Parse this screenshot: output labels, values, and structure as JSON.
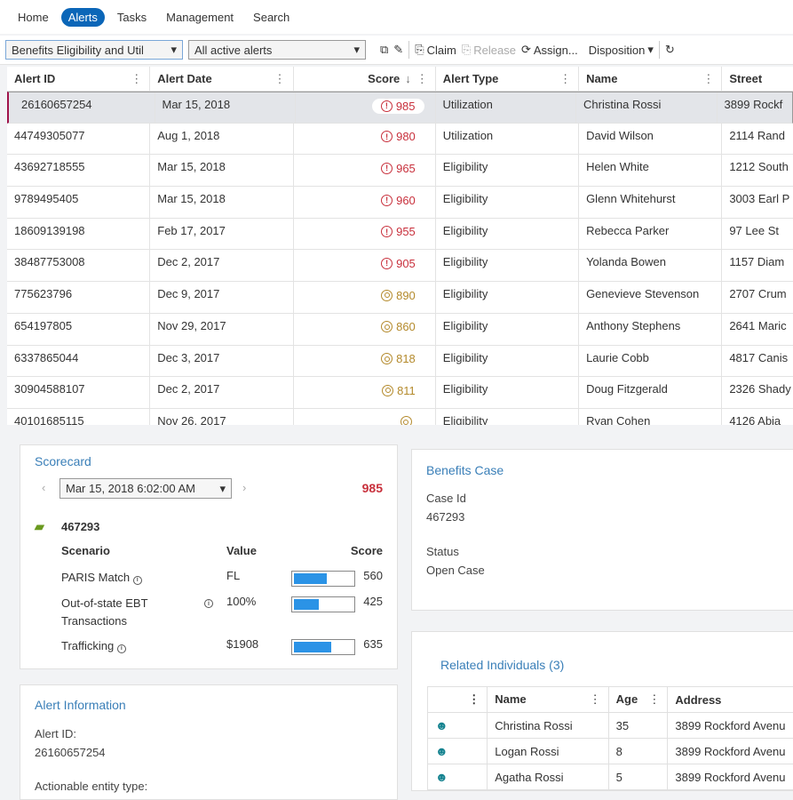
{
  "nav": {
    "items": [
      "Home",
      "Alerts",
      "Tasks",
      "Management",
      "Search"
    ],
    "active": 1
  },
  "toolbar": {
    "queue": "Benefits Eligibility and Util",
    "filter": "All active alerts",
    "claim": "Claim",
    "release": "Release",
    "assign": "Assign...",
    "disposition": "Disposition"
  },
  "grid": {
    "headers": [
      "Alert ID",
      "Alert Date",
      "Score",
      "Alert Type",
      "Name",
      "Street"
    ],
    "rows": [
      {
        "id": "26160657254",
        "date": "Mar 15, 2018",
        "score": "985",
        "level": "high",
        "type": "Utilization",
        "name": "Christina Rossi",
        "street": "3899 Rockf"
      },
      {
        "id": "44749305077",
        "date": "Aug 1, 2018",
        "score": "980",
        "level": "high",
        "type": "Utilization",
        "name": "David Wilson",
        "street": "2114 Rand"
      },
      {
        "id": "43692718555",
        "date": "Mar 15, 2018",
        "score": "965",
        "level": "high",
        "type": "Eligibility",
        "name": "Helen White",
        "street": "1212 South"
      },
      {
        "id": "9789495405",
        "date": "Mar 15, 2018",
        "score": "960",
        "level": "high",
        "type": "Eligibility",
        "name": "Glenn Whitehurst",
        "street": "3003 Earl P"
      },
      {
        "id": "18609139198",
        "date": "Feb 17, 2017",
        "score": "955",
        "level": "high",
        "type": "Eligibility",
        "name": "Rebecca Parker",
        "street": "97 Lee St"
      },
      {
        "id": "38487753008",
        "date": "Dec 2, 2017",
        "score": "905",
        "level": "high",
        "type": "Eligibility",
        "name": "Yolanda Bowen",
        "street": "1157 Diam"
      },
      {
        "id": "775623796",
        "date": "Dec 9, 2017",
        "score": "890",
        "level": "medium",
        "type": "Eligibility",
        "name": "Genevieve Stevenson",
        "street": "2707 Crum"
      },
      {
        "id": "654197805",
        "date": "Nov 29, 2017",
        "score": "860",
        "level": "medium",
        "type": "Eligibility",
        "name": "Anthony Stephens",
        "street": "2641 Maric"
      },
      {
        "id": "6337865044",
        "date": "Dec 3, 2017",
        "score": "818",
        "level": "medium",
        "type": "Eligibility",
        "name": "Laurie Cobb",
        "street": "4817 Canis"
      },
      {
        "id": "30904588107",
        "date": "Dec 2, 2017",
        "score": "811",
        "level": "medium",
        "type": "Eligibility",
        "name": "Doug Fitzgerald",
        "street": "2326 Shady"
      },
      {
        "id": "40101685115",
        "date": "Nov 26, 2017",
        "score": "",
        "level": "medium",
        "type": "Eligibility",
        "name": "Ryan Cohen",
        "street": "4126 Abia"
      }
    ]
  },
  "scorecard": {
    "title": "Scorecard",
    "datetime": "Mar 15, 2018 6:02:00 AM",
    "total": "985",
    "case_id": "467293",
    "headers": [
      "Scenario",
      "Value",
      "Score"
    ],
    "items": [
      {
        "scenario": "PARIS Match",
        "value": "FL",
        "score": "560",
        "fill": 0.56
      },
      {
        "scenario": "Out-of-state EBT Transactions",
        "value": "100%",
        "score": "425",
        "fill": 0.425
      },
      {
        "scenario": "Trafficking",
        "value": "$1908",
        "score": "635",
        "fill": 0.635
      }
    ]
  },
  "alert_info": {
    "title": "Alert Information",
    "alert_id_label": "Alert ID:",
    "alert_id": "26160657254",
    "entity_label": "Actionable entity type:"
  },
  "benefits_case": {
    "title": "Benefits Case",
    "case_id_label": "Case Id",
    "case_id": "467293",
    "status_label": "Status",
    "status": "Open Case"
  },
  "related": {
    "title": "Related Individuals (3)",
    "headers": [
      "Name",
      "Age",
      "Address"
    ],
    "rows": [
      {
        "name": "Christina Rossi",
        "age": "35",
        "address": "3899 Rockford Avenu"
      },
      {
        "name": "Logan Rossi",
        "age": "8",
        "address": "3899 Rockford Avenu"
      },
      {
        "name": "Agatha Rossi",
        "age": "5",
        "address": "3899 Rockford Avenu"
      }
    ]
  },
  "colors": {
    "accent": "#0b66b8",
    "high": "#c8303c",
    "medium": "#b48a2c",
    "bar": "#2b93e6",
    "title": "#3a7fb8"
  }
}
